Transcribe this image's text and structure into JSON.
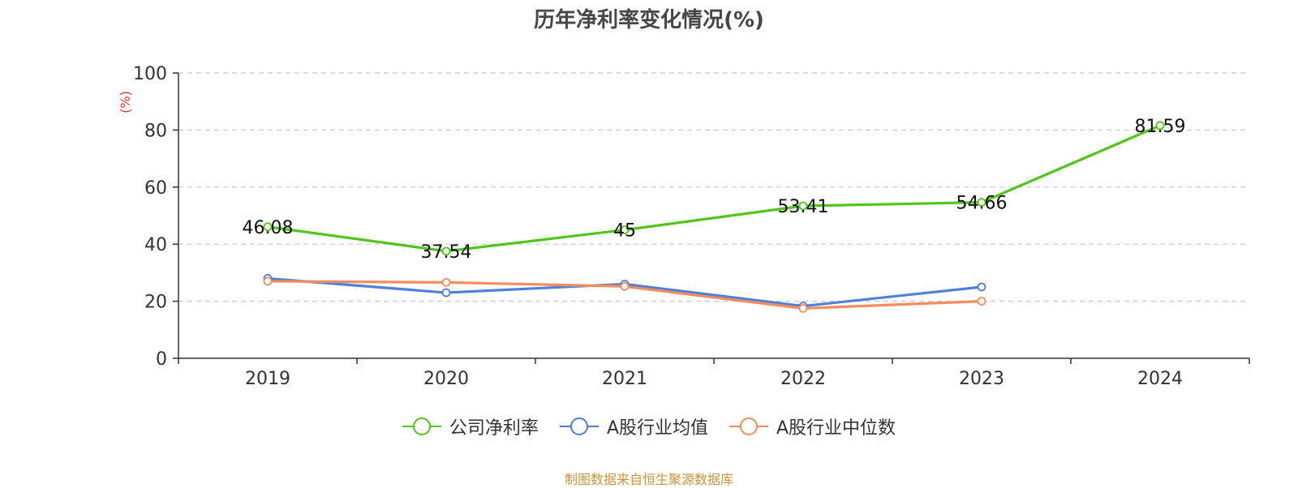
{
  "source_note": "制图数据来自恒生聚源数据库",
  "chart_data": {
    "type": "line",
    "title": "历年净利率变化情况(%)",
    "ylabel": "(%)",
    "ylim": [
      0,
      100
    ],
    "yticks": [
      0,
      20,
      40,
      60,
      80,
      100
    ],
    "grid": true,
    "legend_position": "bottom",
    "categories": [
      "2019",
      "2020",
      "2021",
      "2022",
      "2023",
      "2024"
    ],
    "series": [
      {
        "name": "公司净利率",
        "color": "#52c41a",
        "show_labels": true,
        "values": [
          46.08,
          37.54,
          45,
          53.41,
          54.66,
          81.59
        ]
      },
      {
        "name": "A股行业均值",
        "color": "#4e7fdd",
        "show_labels": false,
        "values": [
          28.0,
          23.0,
          26.0,
          18.3,
          25.0,
          null
        ]
      },
      {
        "name": "A股行业中位数",
        "color": "#f48c5d",
        "show_labels": false,
        "values": [
          27.0,
          26.6,
          25.2,
          17.5,
          20.0,
          null
        ]
      }
    ]
  }
}
